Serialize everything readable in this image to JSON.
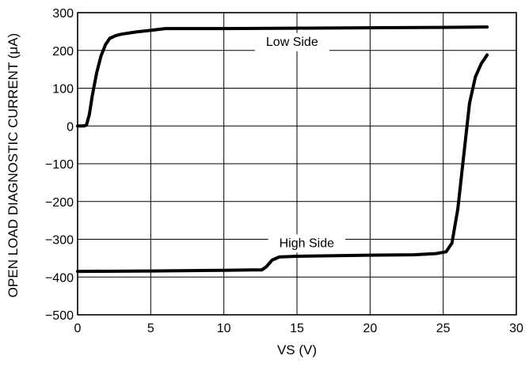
{
  "chart_data": {
    "type": "line",
    "xlabel": "VS (V)",
    "ylabel": "OPEN LOAD DIAGNOSTIC CURRENT (μA)",
    "xlim": [
      0,
      30
    ],
    "ylim": [
      -500,
      300
    ],
    "x_ticks": [
      "0",
      "5",
      "10",
      "15",
      "20",
      "25",
      "30"
    ],
    "y_ticks": [
      "300",
      "200",
      "100",
      "0",
      "−100",
      "−200",
      "−300",
      "−400",
      "−500"
    ],
    "grid": true,
    "series": [
      {
        "name": "Low Side",
        "label_at": [
          12.5,
          225
        ],
        "x": [
          0,
          0.4,
          0.6,
          0.8,
          1.0,
          1.3,
          1.6,
          1.9,
          2.2,
          2.6,
          3.0,
          4.0,
          5.0,
          6.0,
          10.0,
          15.0,
          20.0,
          25.0,
          28.0
        ],
        "y": [
          0,
          0,
          2,
          30,
          80,
          140,
          185,
          215,
          232,
          239,
          243,
          249,
          253,
          258,
          258,
          259,
          260,
          261,
          262
        ]
      },
      {
        "name": "High Side",
        "label_at": [
          13.5,
          -308
        ],
        "x": [
          0,
          5,
          10,
          12.0,
          12.6,
          12.9,
          13.3,
          13.8,
          15.0,
          20.0,
          23.0,
          24.5,
          25.2,
          25.6,
          26.0,
          26.4,
          26.8,
          27.2,
          27.6,
          28.0
        ],
        "y": [
          -385,
          -384,
          -382,
          -381,
          -381,
          -373,
          -355,
          -347,
          -345,
          -342,
          -341,
          -338,
          -333,
          -310,
          -220,
          -80,
          60,
          130,
          165,
          188
        ]
      }
    ]
  }
}
